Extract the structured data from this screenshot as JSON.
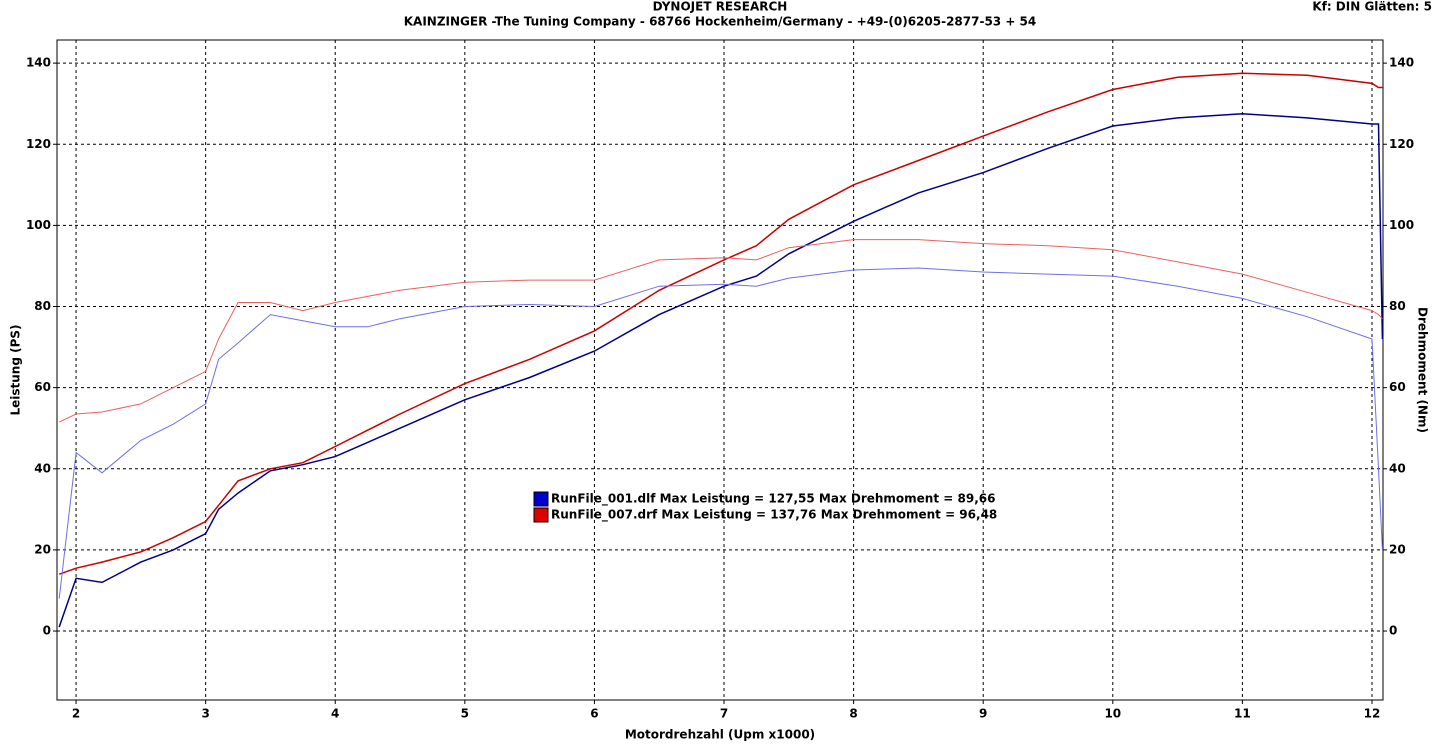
{
  "chart_data": {
    "type": "line",
    "title": "DYNOJET RESEARCH",
    "subtitle": "KAINZINGER -The Tuning Company - 68766 Hockenheim/Germany - +49-(0)6205-2877-53 + 54",
    "corner_note": "Kf: DIN  Glätten: 5",
    "x_label": "Motordrehzahl (Upm x1000)",
    "y_label": "Leistung (PS)",
    "y2_label": "Drehmoment (Nm)",
    "legend": [
      "RunFile_001.dlf Max Leistung = 127,55 Max Drehmoment = 89,66",
      "RunFile_007.drf Max Leistung = 137,76 Max Drehmoment = 96,48"
    ],
    "legend_colors": [
      "#0000cc",
      "#dd0000"
    ],
    "x": [
      1.87,
      2.0,
      2.2,
      2.5,
      2.75,
      3.0,
      3.1,
      3.25,
      3.5,
      3.75,
      4.0,
      4.25,
      4.5,
      5.0,
      5.5,
      6.0,
      6.5,
      7.0,
      7.25,
      7.5,
      8.0,
      8.5,
      9.0,
      9.5,
      10.0,
      10.5,
      11.0,
      11.5,
      12.0,
      12.05,
      12.08
    ],
    "series": [
      {
        "color": "#00008b",
        "width": 1.5,
        "values": [
          1,
          13,
          12,
          17,
          20,
          24,
          30,
          34,
          39.5,
          41,
          43,
          46.5,
          50,
          57,
          62.5,
          69,
          78,
          85,
          87.5,
          93,
          101,
          108,
          113,
          119,
          124.5,
          126.5,
          127.5,
          126.5,
          125,
          125,
          72
        ]
      },
      {
        "color": "#cc0000",
        "width": 1.5,
        "values": [
          14,
          15.5,
          17,
          19.5,
          23,
          27,
          31,
          37,
          40,
          41.5,
          45.5,
          49.5,
          53.5,
          61,
          67,
          74,
          84,
          91.5,
          95,
          101.5,
          110,
          116,
          122,
          128,
          133.5,
          136.5,
          137.5,
          137,
          135,
          134,
          134
        ]
      },
      {
        "color": "#6f6fe8",
        "width": 1,
        "axis": "y2",
        "values": [
          8,
          44,
          39,
          47,
          51,
          56,
          67,
          71,
          78,
          76.5,
          75,
          75,
          77,
          80,
          80.5,
          80,
          85,
          85.5,
          85,
          87,
          89,
          89.5,
          88.5,
          88,
          87.5,
          85,
          82,
          77.5,
          72,
          40,
          20
        ]
      },
      {
        "color": "#ee6060",
        "width": 1,
        "axis": "y2",
        "values": [
          51.5,
          53.5,
          54,
          56,
          60,
          64,
          72,
          81,
          81,
          79,
          81,
          82.5,
          84,
          86,
          86.5,
          86.5,
          91.5,
          92,
          91.5,
          94.5,
          96.5,
          96.5,
          95.5,
          95,
          94,
          91,
          88,
          83.5,
          79,
          78,
          77
        ]
      }
    ],
    "xlim": [
      1.853,
      12.085
    ],
    "xticks": [
      2,
      3,
      4,
      5,
      6,
      7,
      8,
      9,
      10,
      11,
      12
    ],
    "ylim": [
      -17,
      145.7
    ],
    "yticks": [
      0,
      20,
      40,
      60,
      80,
      100,
      120,
      140
    ],
    "y2lim": [
      -17,
      145.7
    ],
    "y2ticks": [
      0,
      20,
      40,
      60,
      80,
      100,
      120,
      140
    ],
    "grid": true
  }
}
